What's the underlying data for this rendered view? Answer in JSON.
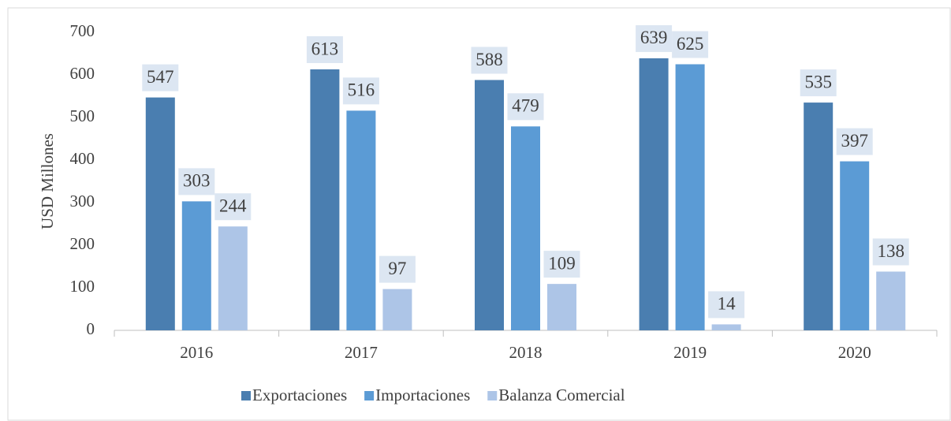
{
  "chart_data": {
    "type": "bar",
    "y_label": "USD Millones",
    "categories": [
      "2016",
      "2017",
      "2018",
      "2019",
      "2020"
    ],
    "series": [
      {
        "name": "Exportaciones",
        "color": "#4a7eb0",
        "values": [
          547,
          613,
          588,
          639,
          535
        ]
      },
      {
        "name": "Importaciones",
        "color": "#5b9bd5",
        "values": [
          303,
          516,
          479,
          625,
          397
        ]
      },
      {
        "name": "Balanza Comercial",
        "color": "#adc5e7",
        "values": [
          244,
          97,
          109,
          14,
          138
        ]
      }
    ],
    "ylim": [
      0,
      700
    ],
    "yticks": [
      0,
      100,
      200,
      300,
      400,
      500,
      600,
      700
    ],
    "legend": "bottom"
  }
}
